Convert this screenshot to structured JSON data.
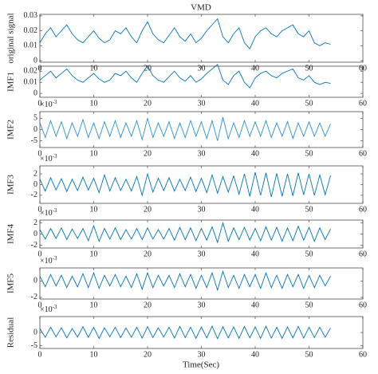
{
  "title": "VMD",
  "xlabel": "Time(Sec)",
  "chart_data": [
    {
      "type": "line",
      "ylabel": "original signal",
      "xlim": [
        0,
        60
      ],
      "xticks": [
        0,
        10,
        20,
        30,
        40,
        50,
        60
      ],
      "ylim": [
        -0.001,
        0.031
      ],
      "yticks": [
        0,
        0.01,
        0.02,
        0.03
      ],
      "x": [
        0,
        1,
        2,
        3,
        4,
        5,
        6,
        7,
        8,
        9,
        10,
        11,
        12,
        13,
        14,
        15,
        16,
        17,
        18,
        19,
        20,
        21,
        22,
        23,
        24,
        25,
        26,
        27,
        28,
        29,
        30,
        31,
        32,
        33,
        34,
        35,
        36,
        37,
        38,
        39,
        40,
        41,
        42,
        43,
        44,
        45,
        46,
        47,
        48,
        49,
        50,
        51,
        52,
        53,
        54
      ],
      "series": [
        {
          "color": "#0072bd",
          "values": [
            0.012,
            0.018,
            0.022,
            0.016,
            0.02,
            0.024,
            0.018,
            0.014,
            0.012,
            0.016,
            0.02,
            0.015,
            0.012,
            0.014,
            0.02,
            0.018,
            0.022,
            0.016,
            0.012,
            0.02,
            0.026,
            0.018,
            0.014,
            0.012,
            0.017,
            0.022,
            0.016,
            0.013,
            0.018,
            0.012,
            0.015,
            0.02,
            0.024,
            0.028,
            0.016,
            0.012,
            0.018,
            0.022,
            0.012,
            0.008,
            0.016,
            0.02,
            0.022,
            0.018,
            0.016,
            0.02,
            0.022,
            0.024,
            0.018,
            0.016,
            0.02,
            0.012,
            0.01,
            0.012,
            0.011
          ]
        }
      ]
    },
    {
      "type": "line",
      "ylabel": "IMF1",
      "xlim": [
        0,
        60
      ],
      "xticks": [
        0,
        10,
        20,
        30,
        40,
        50,
        60
      ],
      "ylim": [
        -0.0035,
        0.0245
      ],
      "yticks": [
        0,
        0.01,
        0.02
      ],
      "x": [
        0,
        1,
        2,
        3,
        4,
        5,
        6,
        7,
        8,
        9,
        10,
        11,
        12,
        13,
        14,
        15,
        16,
        17,
        18,
        19,
        20,
        21,
        22,
        23,
        24,
        25,
        26,
        27,
        28,
        29,
        30,
        31,
        32,
        33,
        34,
        35,
        36,
        37,
        38,
        39,
        40,
        41,
        42,
        43,
        44,
        45,
        46,
        47,
        48,
        49,
        50,
        51,
        52,
        53,
        54
      ],
      "series": [
        {
          "color": "#0072bd",
          "values": [
            0.012,
            0.016,
            0.02,
            0.014,
            0.018,
            0.022,
            0.016,
            0.012,
            0.01,
            0.014,
            0.018,
            0.013,
            0.01,
            0.012,
            0.018,
            0.016,
            0.02,
            0.014,
            0.01,
            0.018,
            0.025,
            0.016,
            0.012,
            0.01,
            0.015,
            0.02,
            0.014,
            0.011,
            0.016,
            0.01,
            0.013,
            0.018,
            0.022,
            0.026,
            0.012,
            0.008,
            0.016,
            0.02,
            0.01,
            0.005,
            0.014,
            0.018,
            0.02,
            0.016,
            0.014,
            0.018,
            0.02,
            0.022,
            0.014,
            0.012,
            0.016,
            0.01,
            0.008,
            0.01,
            0.009
          ]
        }
      ]
    },
    {
      "type": "line",
      "ylabel": "IMF2",
      "multiplier": {
        "base": "×10",
        "power": "-3"
      },
      "xlim": [
        0,
        60
      ],
      "xticks": [
        0,
        10,
        20,
        30,
        40,
        50,
        60
      ],
      "ylim": [
        -8,
        8
      ],
      "yticks": [
        -5,
        0,
        5
      ],
      "x": [
        0,
        1,
        2,
        3,
        4,
        5,
        6,
        7,
        8,
        9,
        10,
        11,
        12,
        13,
        14,
        15,
        16,
        17,
        18,
        19,
        20,
        21,
        22,
        23,
        24,
        25,
        26,
        27,
        28,
        29,
        30,
        31,
        32,
        33,
        34,
        35,
        36,
        37,
        38,
        39,
        40,
        41,
        42,
        43,
        44,
        45,
        46,
        47,
        48,
        49,
        50,
        51,
        52,
        53,
        54
      ],
      "series": [
        {
          "color": "#2b8fd6",
          "values": [
            3,
            -3.5,
            4,
            -3,
            3.5,
            -4,
            3,
            -3,
            4.5,
            -3.5,
            3,
            -4,
            3.5,
            -3,
            4,
            -3.5,
            3,
            -3,
            4,
            -4.5,
            5,
            -3.5,
            3,
            -3,
            3.5,
            -4,
            3,
            -3.5,
            4,
            -3,
            3.5,
            -4,
            4,
            -5,
            5.5,
            -4,
            3,
            -3.5,
            4,
            -3,
            3.5,
            -3,
            4,
            -3.5,
            3,
            -3,
            3.5,
            -4,
            3,
            -3,
            3.5,
            -3,
            3,
            -3,
            2.5
          ]
        }
      ]
    },
    {
      "type": "line",
      "ylabel": "IMF3",
      "multiplier": {
        "base": "×10",
        "power": "-3"
      },
      "xlim": [
        0,
        60
      ],
      "xticks": [
        0,
        10,
        20,
        30,
        40,
        50,
        60
      ],
      "ylim": [
        -3.5,
        3.5
      ],
      "yticks": [
        -2,
        0,
        2
      ],
      "x": [
        0,
        1,
        2,
        3,
        4,
        5,
        6,
        7,
        8,
        9,
        10,
        11,
        12,
        13,
        14,
        15,
        16,
        17,
        18,
        19,
        20,
        21,
        22,
        23,
        24,
        25,
        26,
        27,
        28,
        29,
        30,
        31,
        32,
        33,
        34,
        35,
        36,
        37,
        38,
        39,
        40,
        41,
        42,
        43,
        44,
        45,
        46,
        47,
        48,
        49,
        50,
        51,
        52,
        53,
        54
      ],
      "series": [
        {
          "color": "#0072bd",
          "values": [
            1,
            -1.2,
            1.3,
            -1,
            1.1,
            -1.3,
            1,
            -1.1,
            1.4,
            -1,
            1.2,
            -1.5,
            1.8,
            -1.2,
            1.3,
            -1.1,
            1,
            -1.2,
            1.5,
            -2,
            2,
            -1.4,
            1.2,
            -1.1,
            1.3,
            -1.2,
            1,
            -1.1,
            1.4,
            -1.3,
            1.2,
            -1.5,
            1.8,
            -1.6,
            1.5,
            -1.4,
            1.6,
            -1.8,
            2,
            -2.2,
            2.3,
            -2,
            2.2,
            -2.3,
            2.1,
            -2.2,
            2,
            -2.1,
            2.2,
            -1.9,
            2,
            -2,
            1.8,
            -1.9,
            1.7
          ]
        }
      ]
    },
    {
      "type": "line",
      "ylabel": "IMF4",
      "multiplier": {
        "base": "×10",
        "power": "-3"
      },
      "xlim": [
        0,
        60
      ],
      "xticks": [
        0,
        10,
        20,
        30,
        40,
        50,
        60
      ],
      "ylim": [
        -2.5,
        2.5
      ],
      "yticks": [
        -2,
        0,
        2
      ],
      "x": [
        0,
        1,
        2,
        3,
        4,
        5,
        6,
        7,
        8,
        9,
        10,
        11,
        12,
        13,
        14,
        15,
        16,
        17,
        18,
        19,
        20,
        21,
        22,
        23,
        24,
        25,
        26,
        27,
        28,
        29,
        30,
        31,
        32,
        33,
        34,
        35,
        36,
        37,
        38,
        39,
        40,
        41,
        42,
        43,
        44,
        45,
        46,
        47,
        48,
        49,
        50,
        51,
        52,
        53,
        54
      ],
      "series": [
        {
          "color": "#0072bd",
          "values": [
            0.8,
            -0.9,
            1,
            -0.8,
            1.1,
            -1,
            0.9,
            -0.8,
            1,
            -1.2,
            1.5,
            -1.3,
            1,
            -0.9,
            1.1,
            -1,
            0.8,
            -0.9,
            1,
            -1,
            1.1,
            -0.9,
            0.8,
            -0.9,
            1,
            -1.1,
            1.2,
            -1,
            1.1,
            -1.2,
            1,
            -1.1,
            1.3,
            -1.5,
            2,
            -1.3,
            1.1,
            -1,
            1.2,
            -1.1,
            1,
            -1.2,
            1.3,
            -1.1,
            1.2,
            -1.3,
            1.1,
            -1.2,
            1.4,
            -1.1,
            1.2,
            -1.3,
            1.1,
            -1,
            0.9
          ]
        }
      ]
    },
    {
      "type": "line",
      "ylabel": "IMF5",
      "multiplier": {
        "base": "×10",
        "power": "-3"
      },
      "xlim": [
        0,
        60
      ],
      "xticks": [
        0,
        10,
        20,
        30,
        40,
        50,
        60
      ],
      "ylim": [
        -2.2,
        1.6
      ],
      "yticks": [
        -2,
        0
      ],
      "x": [
        0,
        1,
        2,
        3,
        4,
        5,
        6,
        7,
        8,
        9,
        10,
        11,
        12,
        13,
        14,
        15,
        16,
        17,
        18,
        19,
        20,
        21,
        22,
        23,
        24,
        25,
        26,
        27,
        28,
        29,
        30,
        31,
        32,
        33,
        34,
        35,
        36,
        37,
        38,
        39,
        40,
        41,
        42,
        43,
        44,
        45,
        46,
        47,
        48,
        49,
        50,
        51,
        52,
        53,
        54
      ],
      "series": [
        {
          "color": "#0072bd",
          "values": [
            0.6,
            -0.7,
            0.8,
            -0.6,
            0.7,
            -0.8,
            0.6,
            -0.7,
            0.9,
            -0.8,
            1,
            -0.9,
            0.7,
            -0.6,
            0.8,
            -0.7,
            0.6,
            -0.8,
            0.9,
            -1,
            1,
            -0.8,
            0.7,
            -0.6,
            0.7,
            -0.8,
            0.9,
            -0.7,
            0.8,
            -0.9,
            0.7,
            -0.8,
            1,
            -1.1,
            1.2,
            -0.8,
            0.7,
            -0.9,
            0.8,
            -0.7,
            0.8,
            -0.9,
            1,
            -0.8,
            0.7,
            -0.9,
            0.8,
            -0.7,
            0.8,
            -0.9,
            0.7,
            -0.8,
            0.7,
            -0.6,
            0.6
          ]
        }
      ]
    },
    {
      "type": "line",
      "ylabel": "Residual",
      "multiplier": {
        "base": "×10",
        "power": "-3"
      },
      "xlim": [
        0,
        60
      ],
      "xticks": [
        0,
        10,
        20,
        30,
        40,
        50,
        60
      ],
      "ylim": [
        -6,
        6
      ],
      "yticks": [
        -5,
        0
      ],
      "x": [
        0,
        1,
        2,
        3,
        4,
        5,
        6,
        7,
        8,
        9,
        10,
        11,
        12,
        13,
        14,
        15,
        16,
        17,
        18,
        19,
        20,
        21,
        22,
        23,
        24,
        25,
        26,
        27,
        28,
        29,
        30,
        31,
        32,
        33,
        34,
        35,
        36,
        37,
        38,
        39,
        40,
        41,
        42,
        43,
        44,
        45,
        46,
        47,
        48,
        49,
        50,
        51,
        52,
        53,
        54
      ],
      "series": [
        {
          "color": "#0072bd",
          "values": [
            1.5,
            -1.8,
            2,
            -1.6,
            1.8,
            -2,
            1.5,
            -1.7,
            2.2,
            -1.8,
            2,
            -2.2,
            1.8,
            -1.6,
            2,
            -1.9,
            1.7,
            -1.8,
            2,
            -2.1,
            2.2,
            -1.9,
            1.8,
            -1.7,
            2,
            -2.1,
            2.3,
            -1.9,
            2,
            -2.2,
            2.1,
            -2,
            2.4,
            -2.3,
            2.2,
            -2,
            2.1,
            -2.2,
            2.3,
            -2,
            2.1,
            -2.2,
            2.4,
            -2.1,
            2,
            -2.2,
            2.1,
            -2,
            2.3,
            -2.1,
            2,
            -1.9,
            2,
            -1.8,
            1.7
          ]
        }
      ]
    }
  ]
}
